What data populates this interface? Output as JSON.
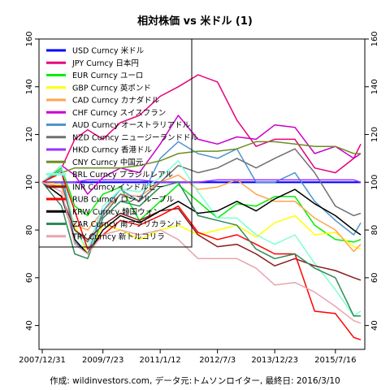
{
  "chart_data": {
    "type": "line",
    "title": "相対株価 vs 米ドル (1)",
    "caption": "作成: wildinvestors.com, データ元:トムソンロイター, 最終日: 2016/3/10",
    "x_tick_labels": [
      "2007/12/31",
      "2009/7/23",
      "2011/1/12",
      "2012/7/3",
      "2013/12/23",
      "2015/7/16"
    ],
    "x_tick_dates": [
      "2007-12-31",
      "2009-07-23",
      "2011-01-12",
      "2012-07-03",
      "2013-12-23",
      "2015-07-16"
    ],
    "x_range": [
      "2007-12-31",
      "2016-03-10"
    ],
    "ylim": [
      30,
      160
    ],
    "y_ticks": [
      40,
      60,
      80,
      100,
      120,
      140,
      160
    ],
    "grid": false,
    "legend_position": "top-left",
    "x": [
      "2007-12-31",
      "2008-06-30",
      "2008-10-31",
      "2009-03-02",
      "2009-07-23",
      "2010-01-04",
      "2010-07-01",
      "2011-01-12",
      "2011-07-01",
      "2012-01-02",
      "2012-07-03",
      "2013-01-02",
      "2013-07-01",
      "2013-12-23",
      "2014-07-01",
      "2015-01-02",
      "2015-07-16",
      "2016-01-04",
      "2016-03-10"
    ],
    "series": [
      {
        "name": "USD Curncy 米ドル",
        "color": "#0000ff",
        "values": [
          100,
          100,
          100,
          100,
          100,
          100,
          100,
          100,
          100,
          100,
          100,
          100,
          100,
          100,
          100,
          100,
          100,
          100,
          100
        ]
      },
      {
        "name": "JPY Curncy 日本円",
        "color": "#e6007e",
        "values": [
          100,
          106,
          118,
          122,
          118,
          125,
          128,
          136,
          140,
          145,
          142,
          126,
          115,
          118,
          118,
          106,
          104,
          110,
          116
        ]
      },
      {
        "name": "EUR Curncy ユーロ",
        "color": "#00ee00",
        "values": [
          100,
          106,
          90,
          86,
          95,
          98,
          84,
          92,
          99,
          92,
          85,
          91,
          90,
          94,
          94,
          82,
          76,
          75,
          76
        ]
      },
      {
        "name": "GBP Curncy 英ポンド",
        "color": "#ffff00",
        "values": [
          100,
          99,
          82,
          70,
          82,
          80,
          76,
          80,
          82,
          78,
          80,
          82,
          77,
          83,
          86,
          78,
          79,
          73,
          72
        ]
      },
      {
        "name": "CAD Curncy カナダドル",
        "color": "#ffa54f",
        "values": [
          100,
          98,
          82,
          80,
          88,
          95,
          94,
          100,
          103,
          97,
          98,
          101,
          95,
          92,
          92,
          85,
          80,
          71,
          74
        ]
      },
      {
        "name": "CHF Curncy スイスフラン",
        "color": "#cc00cc",
        "values": [
          100,
          107,
          103,
          95,
          102,
          106,
          104,
          116,
          128,
          118,
          116,
          119,
          118,
          124,
          123,
          112,
          115,
          110,
          112
        ]
      },
      {
        "name": "AUD Curncy オーストラリアドル",
        "color": "#4f94cd",
        "values": [
          100,
          105,
          75,
          70,
          88,
          97,
          92,
          110,
          117,
          112,
          110,
          114,
          100,
          100,
          104,
          92,
          84,
          78,
          83
        ]
      },
      {
        "name": "NZD Curncy ニュージーランドドル",
        "color": "#707070",
        "values": [
          100,
          100,
          80,
          75,
          86,
          95,
          92,
          100,
          107,
          104,
          106,
          110,
          106,
          110,
          114,
          104,
          90,
          86,
          87
        ]
      },
      {
        "name": "HKD Curncy 香港ドル",
        "color": "#9b30ff",
        "values": [
          100,
          100,
          100,
          101,
          101,
          101,
          101,
          100,
          100,
          100,
          101,
          101,
          101,
          101,
          101,
          101,
          101,
          101,
          100
        ]
      },
      {
        "name": "CNY Curncy 中国元",
        "color": "#6b8e23",
        "values": [
          100,
          104,
          106,
          106,
          106,
          106,
          107,
          109,
          112,
          113,
          113,
          114,
          117,
          117,
          116,
          115,
          115,
          112,
          112
        ]
      },
      {
        "name": "BRL Curncy ブラジルレアル",
        "color": "#7fffd4",
        "values": [
          100,
          107,
          80,
          72,
          90,
          97,
          96,
          102,
          109,
          96,
          85,
          85,
          78,
          74,
          78,
          66,
          55,
          44,
          46
        ]
      },
      {
        "name": "INR Curncy インドルピー",
        "color": "#8b1a1a",
        "values": [
          100,
          94,
          80,
          76,
          82,
          87,
          84,
          88,
          89,
          78,
          73,
          74,
          70,
          65,
          68,
          65,
          63,
          60,
          59
        ]
      },
      {
        "name": "RUB Curncy ロシアルーブル",
        "color": "#ff0000",
        "values": [
          100,
          104,
          88,
          72,
          78,
          84,
          82,
          86,
          90,
          79,
          76,
          78,
          74,
          70,
          70,
          46,
          45,
          35,
          34
        ]
      },
      {
        "name": "KRW Curncy 韓国ウォン",
        "color": "#000000",
        "values": [
          100,
          94,
          76,
          70,
          80,
          86,
          83,
          88,
          92,
          87,
          88,
          92,
          88,
          93,
          97,
          91,
          86,
          80,
          78
        ]
      },
      {
        "name": "ZAR Curncy 南アフリカランド",
        "color": "#2e8b57",
        "values": [
          100,
          90,
          70,
          68,
          85,
          92,
          90,
          98,
          100,
          86,
          84,
          82,
          72,
          68,
          70,
          64,
          60,
          44,
          44
        ]
      },
      {
        "name": "TRY Curncy 新トルコリラ",
        "color": "#e8a4b0",
        "values": [
          100,
          96,
          74,
          70,
          78,
          80,
          78,
          80,
          76,
          68,
          68,
          68,
          64,
          57,
          58,
          54,
          48,
          42,
          41
        ]
      }
    ]
  }
}
